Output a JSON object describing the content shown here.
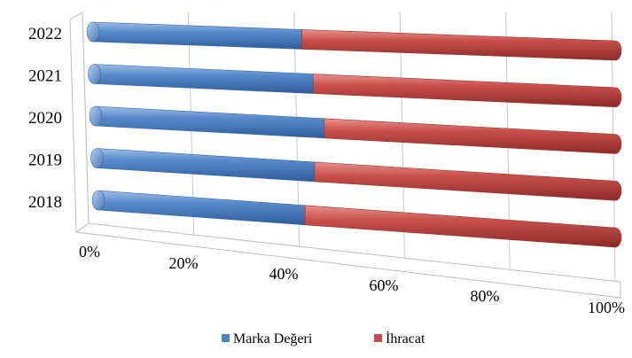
{
  "chart_data": {
    "type": "bar",
    "orientation": "horizontal",
    "stacking": "percent",
    "style": "3d-cylinder",
    "categories": [
      "2018",
      "2019",
      "2020",
      "2021",
      "2022"
    ],
    "series": [
      {
        "name": "Marka Değeri",
        "values": [
          40,
          42,
          44,
          42,
          40
        ],
        "color": "#4f81bd"
      },
      {
        "name": "İhracat",
        "values": [
          60,
          58,
          56,
          58,
          60
        ],
        "color": "#c0504d"
      }
    ],
    "x_ticks": [
      "0%",
      "20%",
      "40%",
      "60%",
      "80%",
      "100%"
    ],
    "xlim": [
      0,
      100
    ],
    "grid": true,
    "legend_position": "bottom",
    "title": "",
    "xlabel": "",
    "ylabel": ""
  }
}
